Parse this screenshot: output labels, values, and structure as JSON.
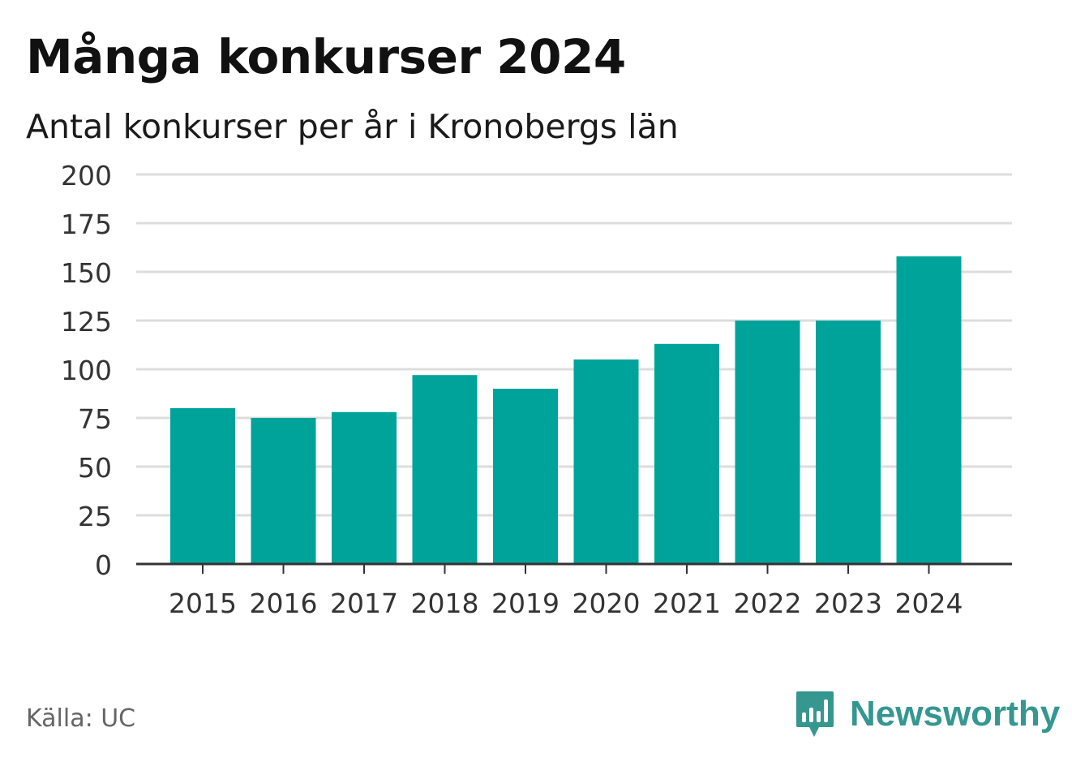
{
  "colors": {
    "bar": "#00a39a",
    "grid": "#dddddd",
    "axis": "#333333",
    "brand": "#35978f"
  },
  "chart_data": {
    "type": "bar",
    "title": "Många konkurser 2024",
    "subtitle": "Antal konkurser per år i Kronobergs län",
    "categories": [
      "2015",
      "2016",
      "2017",
      "2018",
      "2019",
      "2020",
      "2021",
      "2022",
      "2023",
      "2024"
    ],
    "values": [
      80,
      75,
      78,
      97,
      90,
      105,
      113,
      125,
      125,
      158
    ],
    "ylim": [
      0,
      200
    ],
    "yticks": [
      0,
      25,
      50,
      75,
      100,
      125,
      150,
      175,
      200
    ],
    "grid": true,
    "legend": "none"
  },
  "footer": {
    "source": "Källa: UC",
    "brand": "Newsworthy",
    "brand_icon": "newsworthy-logo-icon"
  }
}
